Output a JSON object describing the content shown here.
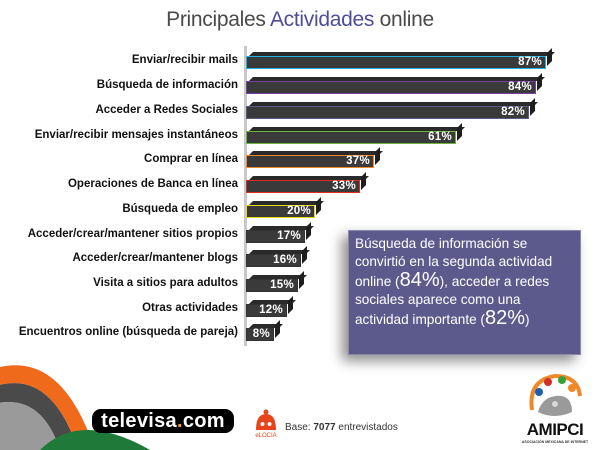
{
  "title": {
    "part1": "Principales ",
    "accent": "Actividades",
    "part2": " online"
  },
  "chart_data": {
    "type": "bar",
    "orientation": "horizontal",
    "title": "Principales Actividades online",
    "xlabel": "",
    "ylabel": "",
    "xlim": [
      0,
      100
    ],
    "grid": false,
    "legend": null,
    "categories": [
      "Enviar/recibir mails",
      "Búsqueda de información",
      "Acceder a Redes Sociales",
      "Enviar/recibir mensajes instantáneos",
      "Comprar en línea",
      "Operaciones de Banca en línea",
      "Búsqueda de empleo",
      "Acceder/crear/mantener sitios propios",
      "Acceder/crear/mantener blogs",
      "Visita a sitios para adultos",
      "Otras actividades",
      "Encuentros online (búsqueda de pareja)"
    ],
    "values": [
      87,
      84,
      82,
      61,
      37,
      33,
      20,
      17,
      16,
      15,
      12,
      8
    ],
    "value_labels": [
      "87%",
      "84%",
      "82%",
      "61%",
      "37%",
      "33%",
      "20%",
      "17%",
      "16%",
      "15%",
      "12%",
      "8%"
    ],
    "outline_colors": [
      "#1fb4e6",
      "#7b3fa0",
      "#5a5a8a",
      "#6cb43f",
      "#f0882a",
      "#e02a1e",
      "#e8dc1a",
      "#333333",
      "#333333",
      "#333333",
      "#333333",
      "#333333"
    ]
  },
  "bars": [
    {
      "label": "Enviar/recibir mails",
      "value": "87%",
      "pct": 87,
      "outline": "#1fb4e6"
    },
    {
      "label": "Búsqueda de información",
      "value": "84%",
      "pct": 84,
      "outline": "#7b3fa0"
    },
    {
      "label": "Acceder a Redes Sociales",
      "value": "82%",
      "pct": 82,
      "outline": "#5a5a8a"
    },
    {
      "label": "Enviar/recibir mensajes instantáneos",
      "value": "61%",
      "pct": 61,
      "outline": "#6cb43f"
    },
    {
      "label": "Comprar en línea",
      "value": "37%",
      "pct": 37,
      "outline": "#f0882a"
    },
    {
      "label": "Operaciones de Banca en línea",
      "value": "33%",
      "pct": 33,
      "outline": "#e02a1e"
    },
    {
      "label": "Búsqueda de empleo",
      "value": "20%",
      "pct": 20,
      "outline": "#e8dc1a"
    },
    {
      "label": "Acceder/crear/mantener sitios propios",
      "value": "17%",
      "pct": 17,
      "outline": "#333333"
    },
    {
      "label": "Acceder/crear/mantener blogs",
      "value": "16%",
      "pct": 16,
      "outline": "#333333"
    },
    {
      "label": "Visita a sitios para adultos",
      "value": "15%",
      "pct": 15,
      "outline": "#333333"
    },
    {
      "label": "Otras actividades",
      "value": "12%",
      "pct": 12,
      "outline": "#333333"
    },
    {
      "label": "Encuentros online (búsqueda de pareja)",
      "value": "8%",
      "pct": 8,
      "outline": "#333333"
    }
  ],
  "callout": {
    "line1": "Búsqueda de información se convirtió en la segunda actividad online (",
    "big1": "84%",
    "line2": "), acceder a redes sociales aparece como una actividad importante (",
    "big2": "82%",
    "line3": ")"
  },
  "footer": {
    "televisa_a": "televisa",
    "televisa_dot": ".",
    "televisa_b": "com",
    "base_prefix": "Base: ",
    "base_count": "7077",
    "base_suffix": " entrevistados",
    "elocia": "eLOCIA",
    "amipci": "AMIPCI",
    "amipci_sub": "ASOCIACIÓN MEXICANA DE INTERNET"
  }
}
